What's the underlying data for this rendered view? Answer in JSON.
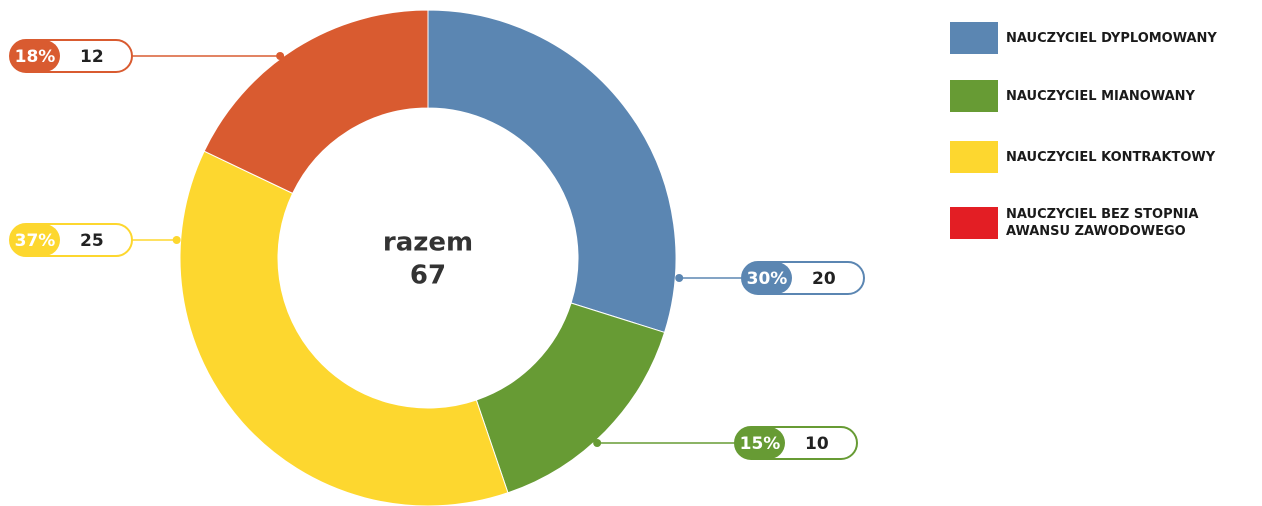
{
  "chart_data": {
    "type": "donut",
    "categories": [
      "NAUCZYCIEL DYPLOMOWANY",
      "NAUCZYCIEL MIANOWANY",
      "NAUCZYCIEL KONTRAKTOWY",
      "NAUCZYCIEL BEZ STOPNIA AWANSU ZAWODOWEGO"
    ],
    "values": [
      20,
      10,
      25,
      12
    ],
    "percent_labels": [
      "30%",
      "15%",
      "37%",
      "18%"
    ],
    "colors": [
      "#5b86b2",
      "#679b34",
      "#fdd72f",
      "#d95b30"
    ],
    "legend_colors": [
      "#5b86b2",
      "#679b34",
      "#fdd72f",
      "#e31e24"
    ],
    "center_label": "razem",
    "total": 67
  }
}
